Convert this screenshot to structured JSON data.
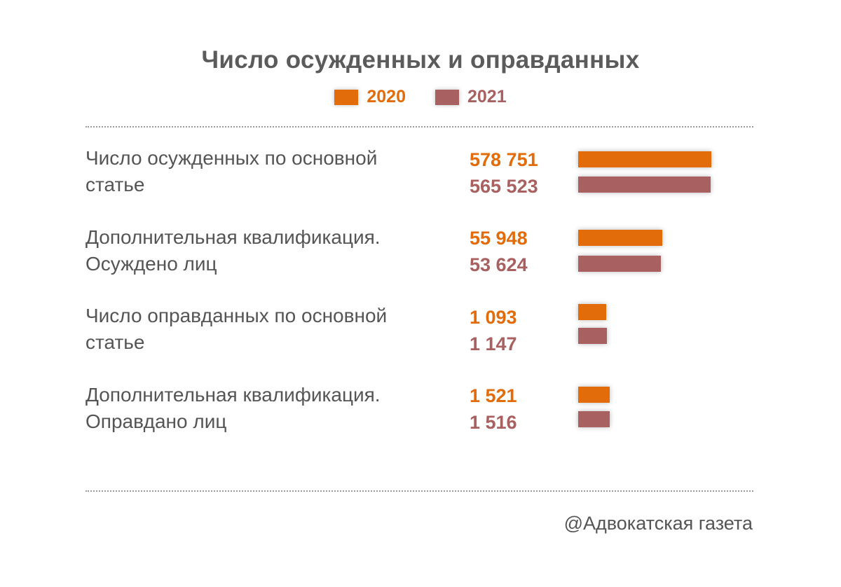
{
  "chart_data": {
    "type": "bar",
    "title": "Число осужденных и оправданных",
    "categories": [
      [
        "Число осужденных по основной",
        "статье"
      ],
      [
        "Дополнительная квалификация.",
        "Осуждено лиц"
      ],
      [
        "Число оправданных по основной",
        "статье"
      ],
      [
        "Дополнительная квалификация.",
        "Оправдано лиц"
      ]
    ],
    "series": [
      {
        "name": "2020",
        "values": [
          578751,
          55948,
          1093,
          1521
        ],
        "labels": [
          "578 751",
          "55 948",
          "1 093",
          "1 521"
        ],
        "color": "#e26b0a"
      },
      {
        "name": "2021",
        "values": [
          565523,
          53624,
          1147,
          1516
        ],
        "labels": [
          "565 523",
          "53 624",
          "1 147",
          "1 516"
        ],
        "color": "#a86060"
      }
    ],
    "legend": "top-center",
    "grid": false
  },
  "source": "@Адвокатская газета"
}
